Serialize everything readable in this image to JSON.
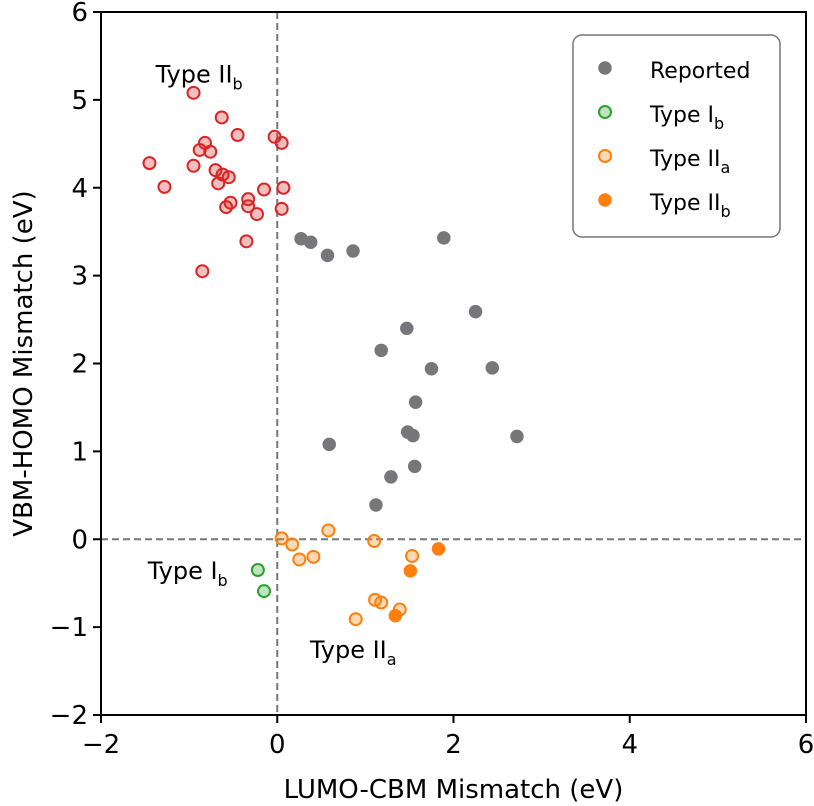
{
  "chart_data": {
    "type": "scatter",
    "xlabel": "LUMO-CBM Mismatch (eV)",
    "ylabel": "VBM-HOMO Mismatch (eV)",
    "xlim": [
      -2,
      6
    ],
    "ylim": [
      -2,
      6
    ],
    "xticks": [
      -2,
      0,
      2,
      4,
      6
    ],
    "yticks": [
      -2,
      -1,
      0,
      1,
      2,
      3,
      4,
      5,
      6
    ],
    "xtick_labels": [
      "−2",
      "0",
      "2",
      "4",
      "6"
    ],
    "ytick_labels": [
      "−2",
      "−1",
      "0",
      "1",
      "2",
      "3",
      "4",
      "5",
      "6"
    ],
    "reference_lines": {
      "x": 0,
      "y": 0,
      "style": "dashed",
      "color": "#777777"
    },
    "grid": false,
    "legend": {
      "placement": "top-right",
      "entries": [
        {
          "main": "Reported",
          "sub": "",
          "series": 0
        },
        {
          "main": "Type I",
          "sub": "b",
          "series": 1
        },
        {
          "main": "Type II",
          "sub": "a",
          "series": 2
        },
        {
          "main": "Type II",
          "sub": "b",
          "series": 3
        }
      ]
    },
    "annotations": [
      {
        "main": "Type II",
        "sub": "b",
        "x": -1.38,
        "y": 5.2
      },
      {
        "main": "Type I",
        "sub": "b",
        "x": -1.47,
        "y": -0.45
      },
      {
        "main": "Type II",
        "sub": "a",
        "x": 0.37,
        "y": -1.35
      }
    ],
    "series": [
      {
        "key": "reported",
        "style": "filled",
        "color": "#77777b",
        "points": [
          [
            0.27,
            3.42
          ],
          [
            0.38,
            3.38
          ],
          [
            0.57,
            3.23
          ],
          [
            0.86,
            3.28
          ],
          [
            1.89,
            3.43
          ],
          [
            2.25,
            2.59
          ],
          [
            1.47,
            2.4
          ],
          [
            1.18,
            2.15
          ],
          [
            1.75,
            1.94
          ],
          [
            2.44,
            1.95
          ],
          [
            1.57,
            1.56
          ],
          [
            0.59,
            1.08
          ],
          [
            1.48,
            1.22
          ],
          [
            1.54,
            1.18
          ],
          [
            2.72,
            1.17
          ],
          [
            1.56,
            0.83
          ],
          [
            1.29,
            0.71
          ],
          [
            1.12,
            0.39
          ]
        ]
      },
      {
        "key": "type_ib",
        "style": "open",
        "color": "#2ca02c",
        "points": [
          [
            -0.22,
            -0.35
          ],
          [
            -0.15,
            -0.59
          ]
        ]
      },
      {
        "key": "type_iia",
        "style": "open",
        "color": "#ff7f0e",
        "points": [
          [
            0.05,
            0.01
          ],
          [
            0.17,
            -0.06
          ],
          [
            0.25,
            -0.23
          ],
          [
            0.41,
            -0.2
          ],
          [
            0.58,
            0.1
          ],
          [
            1.1,
            -0.02
          ],
          [
            1.53,
            -0.19
          ],
          [
            1.11,
            -0.69
          ],
          [
            1.18,
            -0.72
          ],
          [
            1.39,
            -0.8
          ],
          [
            0.89,
            -0.91
          ]
        ]
      },
      {
        "key": "type_iia_filled",
        "style": "filled",
        "color": "#ff7f0e",
        "points": [
          [
            1.83,
            -0.11
          ],
          [
            1.51,
            -0.36
          ],
          [
            1.34,
            -0.87
          ]
        ]
      },
      {
        "key": "type_iib",
        "style": "open",
        "color": "#d62728",
        "points": [
          [
            -0.95,
            5.08
          ],
          [
            -0.63,
            4.8
          ],
          [
            -0.45,
            4.6
          ],
          [
            -0.03,
            4.58
          ],
          [
            0.05,
            4.51
          ],
          [
            -0.82,
            4.51
          ],
          [
            -0.88,
            4.43
          ],
          [
            -0.76,
            4.41
          ],
          [
            -1.45,
            4.28
          ],
          [
            -0.95,
            4.25
          ],
          [
            -0.7,
            4.2
          ],
          [
            -0.62,
            4.15
          ],
          [
            -0.55,
            4.12
          ],
          [
            -0.67,
            4.05
          ],
          [
            -1.28,
            4.01
          ],
          [
            0.07,
            4.0
          ],
          [
            -0.15,
            3.98
          ],
          [
            -0.33,
            3.87
          ],
          [
            -0.53,
            3.83
          ],
          [
            -0.58,
            3.78
          ],
          [
            -0.33,
            3.79
          ],
          [
            0.05,
            3.76
          ],
          [
            -0.23,
            3.7
          ],
          [
            -0.35,
            3.39
          ],
          [
            -0.85,
            3.05
          ]
        ]
      }
    ]
  }
}
